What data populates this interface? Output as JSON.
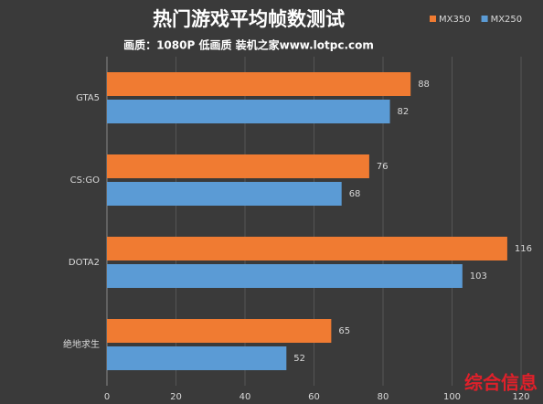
{
  "chart_data": {
    "type": "hbar",
    "title": "热门游戏平均帧数测试",
    "subtitle": "画质：1080P 低画质 装机之家www.lotpc.com",
    "categories": [
      "GTA5",
      "CS:GO",
      "DOTA2",
      "绝地求生"
    ],
    "series": [
      {
        "name": "MX350",
        "color": "#f07b32",
        "values": [
          88,
          76,
          116,
          65
        ]
      },
      {
        "name": "MX250",
        "color": "#5b9bd5",
        "values": [
          82,
          68,
          103,
          52
        ]
      }
    ],
    "xlim": [
      0,
      120
    ],
    "xticks": [
      0,
      20,
      40,
      60,
      80,
      100,
      120
    ],
    "grid": true,
    "legend": "top-right",
    "watermark": "综合信息"
  }
}
